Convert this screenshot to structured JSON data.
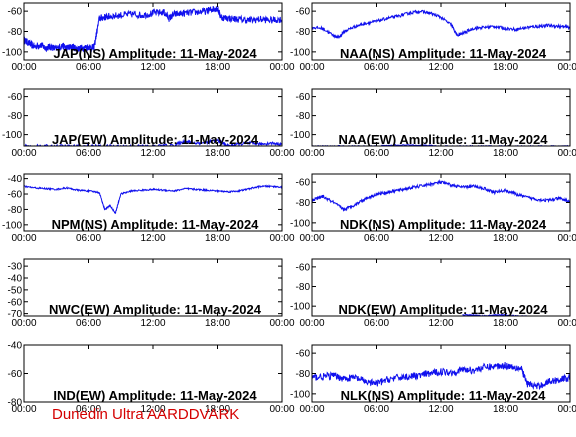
{
  "footer": "Dunedin Ultra AARDDVARK",
  "colors": {
    "trace": "#1010ee",
    "footer": "#d40000",
    "axis": "#000000"
  },
  "chart_data": [
    {
      "type": "line",
      "title": "JAP(NS) Amplitude: 11-May-2024",
      "ytick_labels": [
        "-60",
        "-80",
        "-100"
      ],
      "ytick_values": [
        -60,
        -80,
        -100
      ],
      "ylim": [
        -108,
        -52
      ],
      "xtick_labels": [
        "00:00",
        "06:00",
        "12:00",
        "18:00",
        "00:00"
      ],
      "series": [
        {
          "x": [
            0,
            0.5,
            1,
            1.5,
            2,
            2.5,
            3,
            3.5,
            4,
            4.5,
            5,
            5.5,
            6,
            6.5,
            7,
            7.5,
            8,
            9,
            10,
            11,
            12,
            13,
            13.5,
            14,
            15,
            16,
            17,
            17.5,
            18,
            18.3,
            19,
            20,
            21,
            22,
            23,
            24
          ],
          "y": [
            -88,
            -92,
            -95,
            -93,
            -96,
            -95,
            -97,
            -94,
            -96,
            -95,
            -97,
            -96,
            -95,
            -96,
            -67,
            -66,
            -65,
            -64,
            -63,
            -64,
            -62,
            -61,
            -67,
            -63,
            -62,
            -61,
            -60,
            -58,
            -57,
            -66,
            -67,
            -68,
            -69,
            -68,
            -69,
            -68
          ],
          "band": 7
        }
      ]
    },
    {
      "type": "line",
      "title": "NAA(NS) Amplitude: 11-May-2024",
      "ytick_labels": [
        "-60",
        "-80",
        "-100"
      ],
      "ytick_values": [
        -60,
        -80,
        -100
      ],
      "ylim": [
        -108,
        -52
      ],
      "xtick_labels": [
        "00:00",
        "06:00",
        "12:00",
        "18:00",
        "00:00"
      ],
      "series": [
        {
          "x": [
            0,
            1,
            2,
            2.5,
            3,
            4,
            5,
            6,
            7,
            8,
            9,
            10,
            11,
            12,
            13,
            13.5,
            14,
            15,
            16,
            17,
            18,
            19,
            20,
            21,
            22,
            23,
            24
          ],
          "y": [
            -76,
            -77,
            -84,
            -86,
            -80,
            -75,
            -72,
            -70,
            -67,
            -65,
            -62,
            -60,
            -62,
            -66,
            -74,
            -84,
            -82,
            -77,
            -76,
            -75,
            -77,
            -78,
            -76,
            -75,
            -74,
            -75,
            -76
          ],
          "band": 3
        }
      ]
    },
    {
      "type": "line",
      "title": "JAP(EW) Amplitude: 11-May-2024",
      "ytick_labels": [
        "-60",
        "-80",
        "-100"
      ],
      "ytick_values": [
        -60,
        -80,
        -100
      ],
      "ylim": [
        -112,
        -52
      ],
      "xtick_labels": [
        "00:00",
        "06:00",
        "12:00",
        "18:00",
        "00:00"
      ],
      "series": [
        {
          "x": [
            0,
            2,
            4,
            6,
            8,
            10,
            12,
            14,
            15,
            16,
            17,
            18,
            19,
            20,
            21,
            22,
            23,
            24
          ],
          "y": [
            -112,
            -112,
            -112,
            -112,
            -112,
            -112,
            -112,
            -111,
            -107,
            -109,
            -108,
            -106,
            -112,
            -110,
            -109,
            -110,
            -109,
            -110
          ],
          "band": 3
        }
      ]
    },
    {
      "type": "line",
      "title": "NAA(EW) Amplitude: 11-May-2024",
      "ytick_labels": [
        "-60",
        "-80",
        "-100"
      ],
      "ytick_values": [
        -60,
        -80,
        -100
      ],
      "ylim": [
        -112,
        -52
      ],
      "xtick_labels": [
        "00:00",
        "06:00",
        "12:00",
        "18:00",
        "00:00"
      ],
      "series": [
        {
          "x": [
            0,
            2,
            4,
            6,
            8,
            10,
            12,
            14,
            16,
            18,
            20,
            22,
            24
          ],
          "y": [
            -112,
            -112,
            -112,
            -112,
            -111,
            -111,
            -112,
            -112,
            -112,
            -112,
            -112,
            -112,
            -112
          ],
          "band": 1
        }
      ]
    },
    {
      "type": "line",
      "title": "NPM(NS) Amplitude: 11-May-2024",
      "ytick_labels": [
        "-40",
        "-60",
        "-80",
        "-100"
      ],
      "ytick_values": [
        -40,
        -60,
        -80,
        -100
      ],
      "ylim": [
        -108,
        -34
      ],
      "xtick_labels": [
        "00:00",
        "06:00",
        "12:00",
        "18:00",
        "00:00"
      ],
      "series": [
        {
          "x": [
            0,
            1,
            2,
            3,
            4,
            5,
            6,
            7,
            7.5,
            8,
            8.5,
            9,
            10,
            11,
            12,
            13,
            14,
            15,
            16,
            17,
            18,
            19,
            20,
            21,
            22,
            23,
            24
          ],
          "y": [
            -50,
            -52,
            -53,
            -54,
            -52,
            -55,
            -56,
            -58,
            -80,
            -75,
            -85,
            -60,
            -56,
            -55,
            -54,
            -55,
            -56,
            -53,
            -54,
            -55,
            -56,
            -57,
            -56,
            -53,
            -50,
            -50,
            -51
          ],
          "band": 2
        }
      ]
    },
    {
      "type": "line",
      "title": "NDK(NS) Amplitude: 11-May-2024",
      "ytick_labels": [
        "-60",
        "-80",
        "-100"
      ],
      "ytick_values": [
        -60,
        -80,
        -100
      ],
      "ylim": [
        -108,
        -52
      ],
      "xtick_labels": [
        "00:00",
        "06:00",
        "12:00",
        "18:00",
        "00:00"
      ],
      "series": [
        {
          "x": [
            0,
            1,
            2,
            3,
            4,
            5,
            6,
            7,
            8,
            9,
            10,
            11,
            12,
            13,
            14,
            15,
            16,
            17,
            18,
            19,
            20,
            21,
            22,
            23,
            24
          ],
          "y": [
            -78,
            -74,
            -80,
            -87,
            -82,
            -76,
            -72,
            -70,
            -68,
            -66,
            -64,
            -62,
            -60,
            -63,
            -65,
            -64,
            -66,
            -70,
            -68,
            -72,
            -75,
            -77,
            -78,
            -76,
            -79
          ],
          "band": 3
        }
      ]
    },
    {
      "type": "line",
      "title": "NWC(EW) Amplitude: 11-May-2024",
      "ytick_labels": [
        "-30",
        "-40",
        "-50",
        "-60",
        "-70"
      ],
      "ytick_values": [
        -30,
        -40,
        -50,
        -60,
        -70
      ],
      "ylim": [
        -72,
        -24
      ],
      "xtick_labels": [
        "00:00",
        "06:00",
        "12:00",
        "18:00",
        "00:00"
      ],
      "series": []
    },
    {
      "type": "line",
      "title": "NDK(EW) Amplitude: 11-May-2024",
      "ytick_labels": [
        "-60",
        "-80",
        "-100"
      ],
      "ytick_values": [
        -60,
        -80,
        -100
      ],
      "ylim": [
        -110,
        -52
      ],
      "xtick_labels": [
        "00:00",
        "06:00",
        "12:00",
        "18:00",
        "00:00"
      ],
      "series": [
        {
          "x": [
            14,
            15,
            16,
            17,
            18,
            19,
            20
          ],
          "y": [
            -109,
            -109,
            -110,
            -109,
            -109,
            -110,
            -110
          ],
          "band": 1
        }
      ]
    },
    {
      "type": "line",
      "title": "IND(EW) Amplitude: 11-May-2024",
      "ytick_labels": [
        "-40",
        "-60",
        "-80"
      ],
      "ytick_values": [
        -40,
        -60,
        -80
      ],
      "ylim": [
        -80,
        -40
      ],
      "xtick_labels": [
        "00:00",
        "06:00",
        "12:00",
        "18:00",
        "00:00"
      ],
      "series": []
    },
    {
      "type": "line",
      "title": "NLK(NS) Amplitude: 11-May-2024",
      "ytick_labels": [
        "-60",
        "-80",
        "-100"
      ],
      "ytick_values": [
        -60,
        -80,
        -100
      ],
      "ylim": [
        -108,
        -52
      ],
      "xtick_labels": [
        "00:00",
        "06:00",
        "12:00",
        "18:00",
        "00:00"
      ],
      "series": [
        {
          "x": [
            0,
            1,
            2,
            3,
            4,
            5,
            6,
            7,
            8,
            9,
            10,
            11,
            12,
            13,
            14,
            15,
            16,
            17,
            18,
            19,
            19.5,
            20,
            21,
            22,
            23,
            24
          ],
          "y": [
            -84,
            -83,
            -82,
            -85,
            -84,
            -88,
            -90,
            -86,
            -84,
            -83,
            -82,
            -80,
            -78,
            -79,
            -76,
            -77,
            -74,
            -73,
            -72,
            -74,
            -76,
            -90,
            -93,
            -88,
            -86,
            -84
          ],
          "band": 7
        }
      ]
    }
  ]
}
